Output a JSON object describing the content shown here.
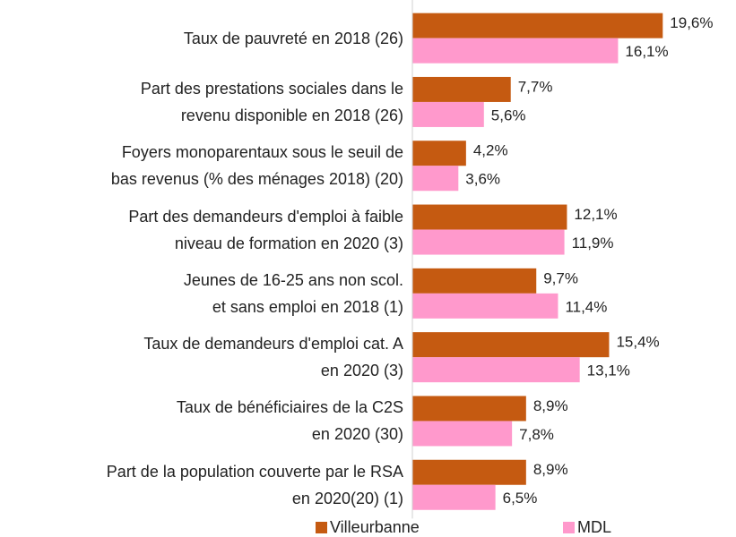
{
  "chart_data": {
    "type": "bar",
    "orientation": "horizontal",
    "categories": [
      "Taux de pauvreté en 2018 (26)",
      "Part des prestations sociales dans le\nrevenu disponible en 2018 (26)",
      "Foyers monoparentaux sous le seuil de\nbas revenus (% des ménages 2018) (20)",
      "Part des demandeurs d'emploi à faible\nniveau de formation en 2020 (3)",
      "Jeunes de 16-25 ans non scol.\net sans emploi en 2018 (1)",
      "Taux de demandeurs d'emploi cat. A\nen 2020 (3)",
      "Taux de bénéficiaires de la C2S\nen 2020 (30)",
      "Part de la population couverte par le RSA\nen 2020(20) (1)"
    ],
    "series": [
      {
        "name": "Villeurbanne",
        "color": "#c55a11",
        "values": [
          19.6,
          7.7,
          4.2,
          12.1,
          9.7,
          15.4,
          8.9,
          8.9
        ],
        "value_labels": [
          "19,6%",
          "7,7%",
          "4,2%",
          "12,1%",
          "9,7%",
          "15,4%",
          "8,9%",
          "8,9%"
        ]
      },
      {
        "name": "MDL",
        "color": "#ff99cc",
        "values": [
          16.1,
          5.6,
          3.6,
          11.9,
          11.4,
          13.1,
          7.8,
          6.5
        ],
        "value_labels": [
          "16,1%",
          "5,6%",
          "3,6%",
          "11,9%",
          "11,4%",
          "13,1%",
          "7,8%",
          "6,5%"
        ]
      }
    ],
    "xlim": [
      0,
      25
    ],
    "legend": "bottom"
  }
}
